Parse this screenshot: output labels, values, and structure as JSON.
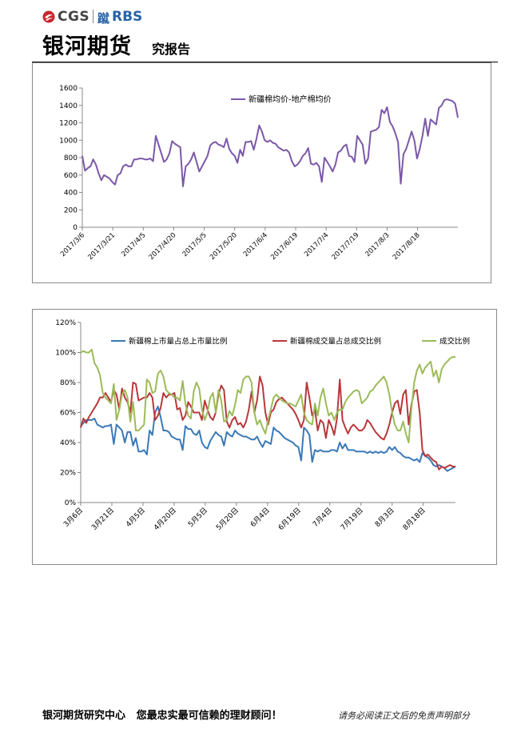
{
  "header": {
    "logo_cgs": "CGS",
    "logo_rbs_mark": "蹴",
    "logo_rbs": "RBS",
    "company_name": "银河期货",
    "report_type": "究报告"
  },
  "footer": {
    "left_text": "银河期货研究中心   您最忠实最可信赖的理财顾问！",
    "right_text": "请务必阅读正文后的免责声明部分"
  },
  "chart_data": [
    {
      "type": "line",
      "title": "",
      "xlabel": "",
      "ylabel": "",
      "ylim": [
        0,
        1600
      ],
      "yticks": [
        0,
        200,
        400,
        600,
        800,
        1000,
        1200,
        1400,
        1600
      ],
      "grid": false,
      "legend_position": "top-right",
      "colors": [
        "#7b58a8"
      ],
      "x_tick_labels": [
        "2017/3/6",
        "2017/3/21",
        "2017/4/5",
        "2017/4/20",
        "2017/5/5",
        "2017/5/20",
        "2017/6/4",
        "2017/6/19",
        "2017/7/4",
        "2017/7/19",
        "2017/8/3",
        "2017/8/18"
      ],
      "series": [
        {
          "name": "新疆棉均价-地产棉均价",
          "values": [
            820,
            650,
            680,
            700,
            780,
            720,
            620,
            540,
            600,
            580,
            560,
            520,
            490,
            600,
            620,
            700,
            720,
            700,
            700,
            780,
            780,
            790,
            790,
            780,
            780,
            790,
            760,
            1050,
            950,
            850,
            750,
            780,
            850,
            990,
            960,
            940,
            920,
            470,
            700,
            730,
            780,
            860,
            750,
            640,
            700,
            760,
            820,
            940,
            970,
            980,
            950,
            940,
            920,
            1020,
            900,
            850,
            820,
            740,
            890,
            820,
            980,
            980,
            990,
            890,
            1020,
            1170,
            1100,
            1000,
            980,
            1000,
            970,
            960,
            920,
            900,
            880,
            890,
            860,
            760,
            700,
            720,
            760,
            820,
            850,
            910,
            730,
            720,
            740,
            700,
            520,
            800,
            750,
            700,
            640,
            720,
            860,
            880,
            930,
            950,
            820,
            810,
            750,
            1050,
            1000,
            950,
            730,
            790,
            1100,
            1110,
            1120,
            1150,
            1350,
            1310,
            1380,
            1210,
            1160,
            1080,
            980,
            500,
            840,
            900,
            1000,
            1100,
            1000,
            790,
            900,
            1050,
            1250,
            1050,
            1240,
            1210,
            1180,
            1370,
            1400,
            1460,
            1470,
            1460,
            1450,
            1420,
            1260
          ]
        }
      ]
    },
    {
      "type": "line",
      "title": "",
      "xlabel": "",
      "ylabel": "",
      "ylim": [
        0,
        120
      ],
      "ytick_labels": [
        "0%",
        "20%",
        "40%",
        "60%",
        "80%",
        "100%",
        "120%"
      ],
      "grid": false,
      "legend_position": "top",
      "x_tick_labels": [
        "3月6日",
        "3月21日",
        "4月5日",
        "4月20日",
        "5月5日",
        "5月20日",
        "6月4日",
        "6月19日",
        "7月4日",
        "7月19日",
        "8月3日",
        "8月18日"
      ],
      "series": [
        {
          "name": "新疆棉上市量占总上市量比例",
          "color": "#3a78b8",
          "values": [
            51,
            53,
            55,
            55,
            55,
            56,
            52,
            51,
            50,
            51,
            51,
            52,
            39,
            52,
            50,
            48,
            40,
            47,
            47,
            38,
            43,
            34,
            34,
            35,
            32,
            48,
            45,
            60,
            64,
            57,
            48,
            48,
            47,
            44,
            43,
            42,
            42,
            35,
            51,
            49,
            49,
            46,
            45,
            48,
            40,
            37,
            36,
            41,
            44,
            47,
            45,
            44,
            38,
            47,
            45,
            44,
            48,
            46,
            45,
            44,
            44,
            43,
            42,
            42,
            44,
            40,
            37,
            41,
            40,
            39,
            50,
            48,
            47,
            45,
            43,
            42,
            41,
            40,
            38,
            37,
            28,
            50,
            48,
            45,
            27,
            35,
            34,
            35,
            34,
            34,
            34,
            35,
            35,
            34,
            40,
            36,
            39,
            35,
            35,
            35,
            34,
            34,
            34,
            34,
            33,
            34,
            33,
            34,
            33,
            34,
            33,
            34,
            37,
            35,
            37,
            34,
            33,
            31,
            30,
            30,
            29,
            28,
            29,
            27,
            33,
            31,
            30,
            28,
            25,
            24,
            25,
            24,
            23,
            21,
            22,
            23,
            24
          ]
        },
        {
          "name": "新疆棉成交量占总成交比例",
          "color": "#b8383a",
          "values": [
            50,
            56,
            53,
            57,
            60,
            63,
            66,
            70,
            70,
            73,
            70,
            67,
            75,
            72,
            62,
            76,
            70,
            67,
            60,
            80,
            79,
            68,
            69,
            70,
            70,
            73,
            70,
            55,
            58,
            63,
            73,
            70,
            72,
            72,
            73,
            62,
            63,
            55,
            58,
            67,
            64,
            60,
            60,
            60,
            55,
            68,
            62,
            57,
            55,
            60,
            72,
            78,
            75,
            54,
            50,
            55,
            57,
            52,
            53,
            50,
            54,
            62,
            74,
            60,
            68,
            84,
            78,
            60,
            52,
            60,
            62,
            67,
            69,
            70,
            68,
            66,
            64,
            62,
            59,
            55,
            50,
            55,
            80,
            70,
            58,
            62,
            48,
            55,
            53,
            43,
            55,
            51,
            45,
            56,
            82,
            55,
            50,
            46,
            50,
            52,
            50,
            48,
            48,
            50,
            55,
            53,
            50,
            47,
            45,
            43,
            42,
            46,
            52,
            60,
            66,
            68,
            59,
            72,
            75,
            52,
            65,
            74,
            75,
            60,
            35,
            31,
            32,
            30,
            28,
            27,
            22,
            24,
            23,
            24,
            25,
            24,
            24
          ]
        },
        {
          "name": "成交比例",
          "color": "#9bbb59",
          "values": [
            100,
            101,
            100,
            100,
            102,
            93,
            90,
            85,
            73,
            70,
            68,
            66,
            79,
            55,
            62,
            72,
            75,
            70,
            54,
            67,
            48,
            48,
            50,
            52,
            82,
            80,
            73,
            74,
            86,
            88,
            84,
            75,
            73,
            72,
            70,
            70,
            68,
            81,
            66,
            58,
            56,
            74,
            80,
            76,
            62,
            55,
            60,
            70,
            73,
            60,
            75,
            68,
            54,
            55,
            61,
            58,
            65,
            75,
            73,
            82,
            84,
            84,
            80,
            60,
            52,
            55,
            50,
            46,
            55,
            62,
            70,
            72,
            70,
            68,
            67,
            66,
            66,
            65,
            64,
            68,
            72,
            60,
            55,
            53,
            52,
            66,
            58,
            70,
            76,
            66,
            58,
            60,
            55,
            60,
            62,
            62,
            67,
            70,
            72,
            74,
            75,
            74,
            66,
            68,
            70,
            74,
            75,
            78,
            80,
            82,
            84,
            80,
            72,
            60,
            52,
            48,
            48,
            54,
            46,
            40,
            62,
            80,
            88,
            92,
            86,
            90,
            92,
            94,
            84,
            88,
            80,
            89,
            92,
            94,
            96,
            97,
            97
          ]
        }
      ]
    }
  ]
}
